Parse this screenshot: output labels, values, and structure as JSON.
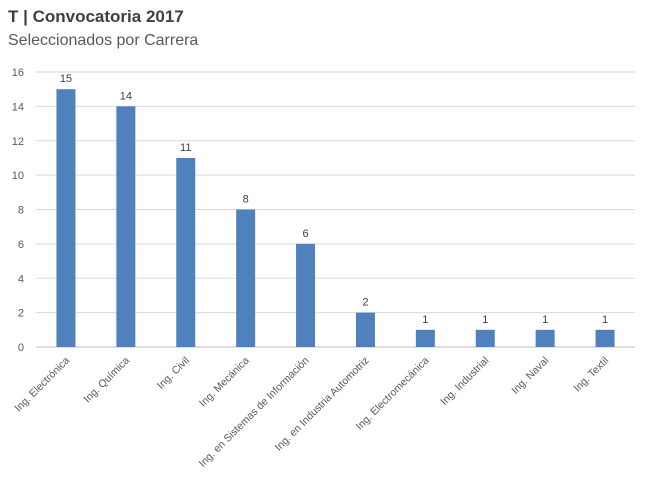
{
  "chart_data": {
    "type": "bar",
    "title": "T | Convocatoria 2017",
    "subtitle": "Seleccionados por Carrera",
    "categories": [
      "Ing. Electrónica",
      "Ing. Química",
      "Ing. Civil",
      "Ing. Mecánica",
      "Ing. en Sistemas de Información",
      "Ing. en Industria Automotriz",
      "Ing. Electromecánica",
      "Ing. Industrial",
      "Ing. Naval",
      "Ing. Textil"
    ],
    "values": [
      15,
      14,
      11,
      8,
      6,
      2,
      1,
      1,
      1,
      1
    ],
    "ylim": [
      0,
      16
    ],
    "yticks": [
      0,
      2,
      4,
      6,
      8,
      10,
      12,
      14,
      16
    ],
    "xlabel": "",
    "ylabel": "",
    "grid": true,
    "data_labels": true,
    "bar_color": "#4f81bd"
  }
}
